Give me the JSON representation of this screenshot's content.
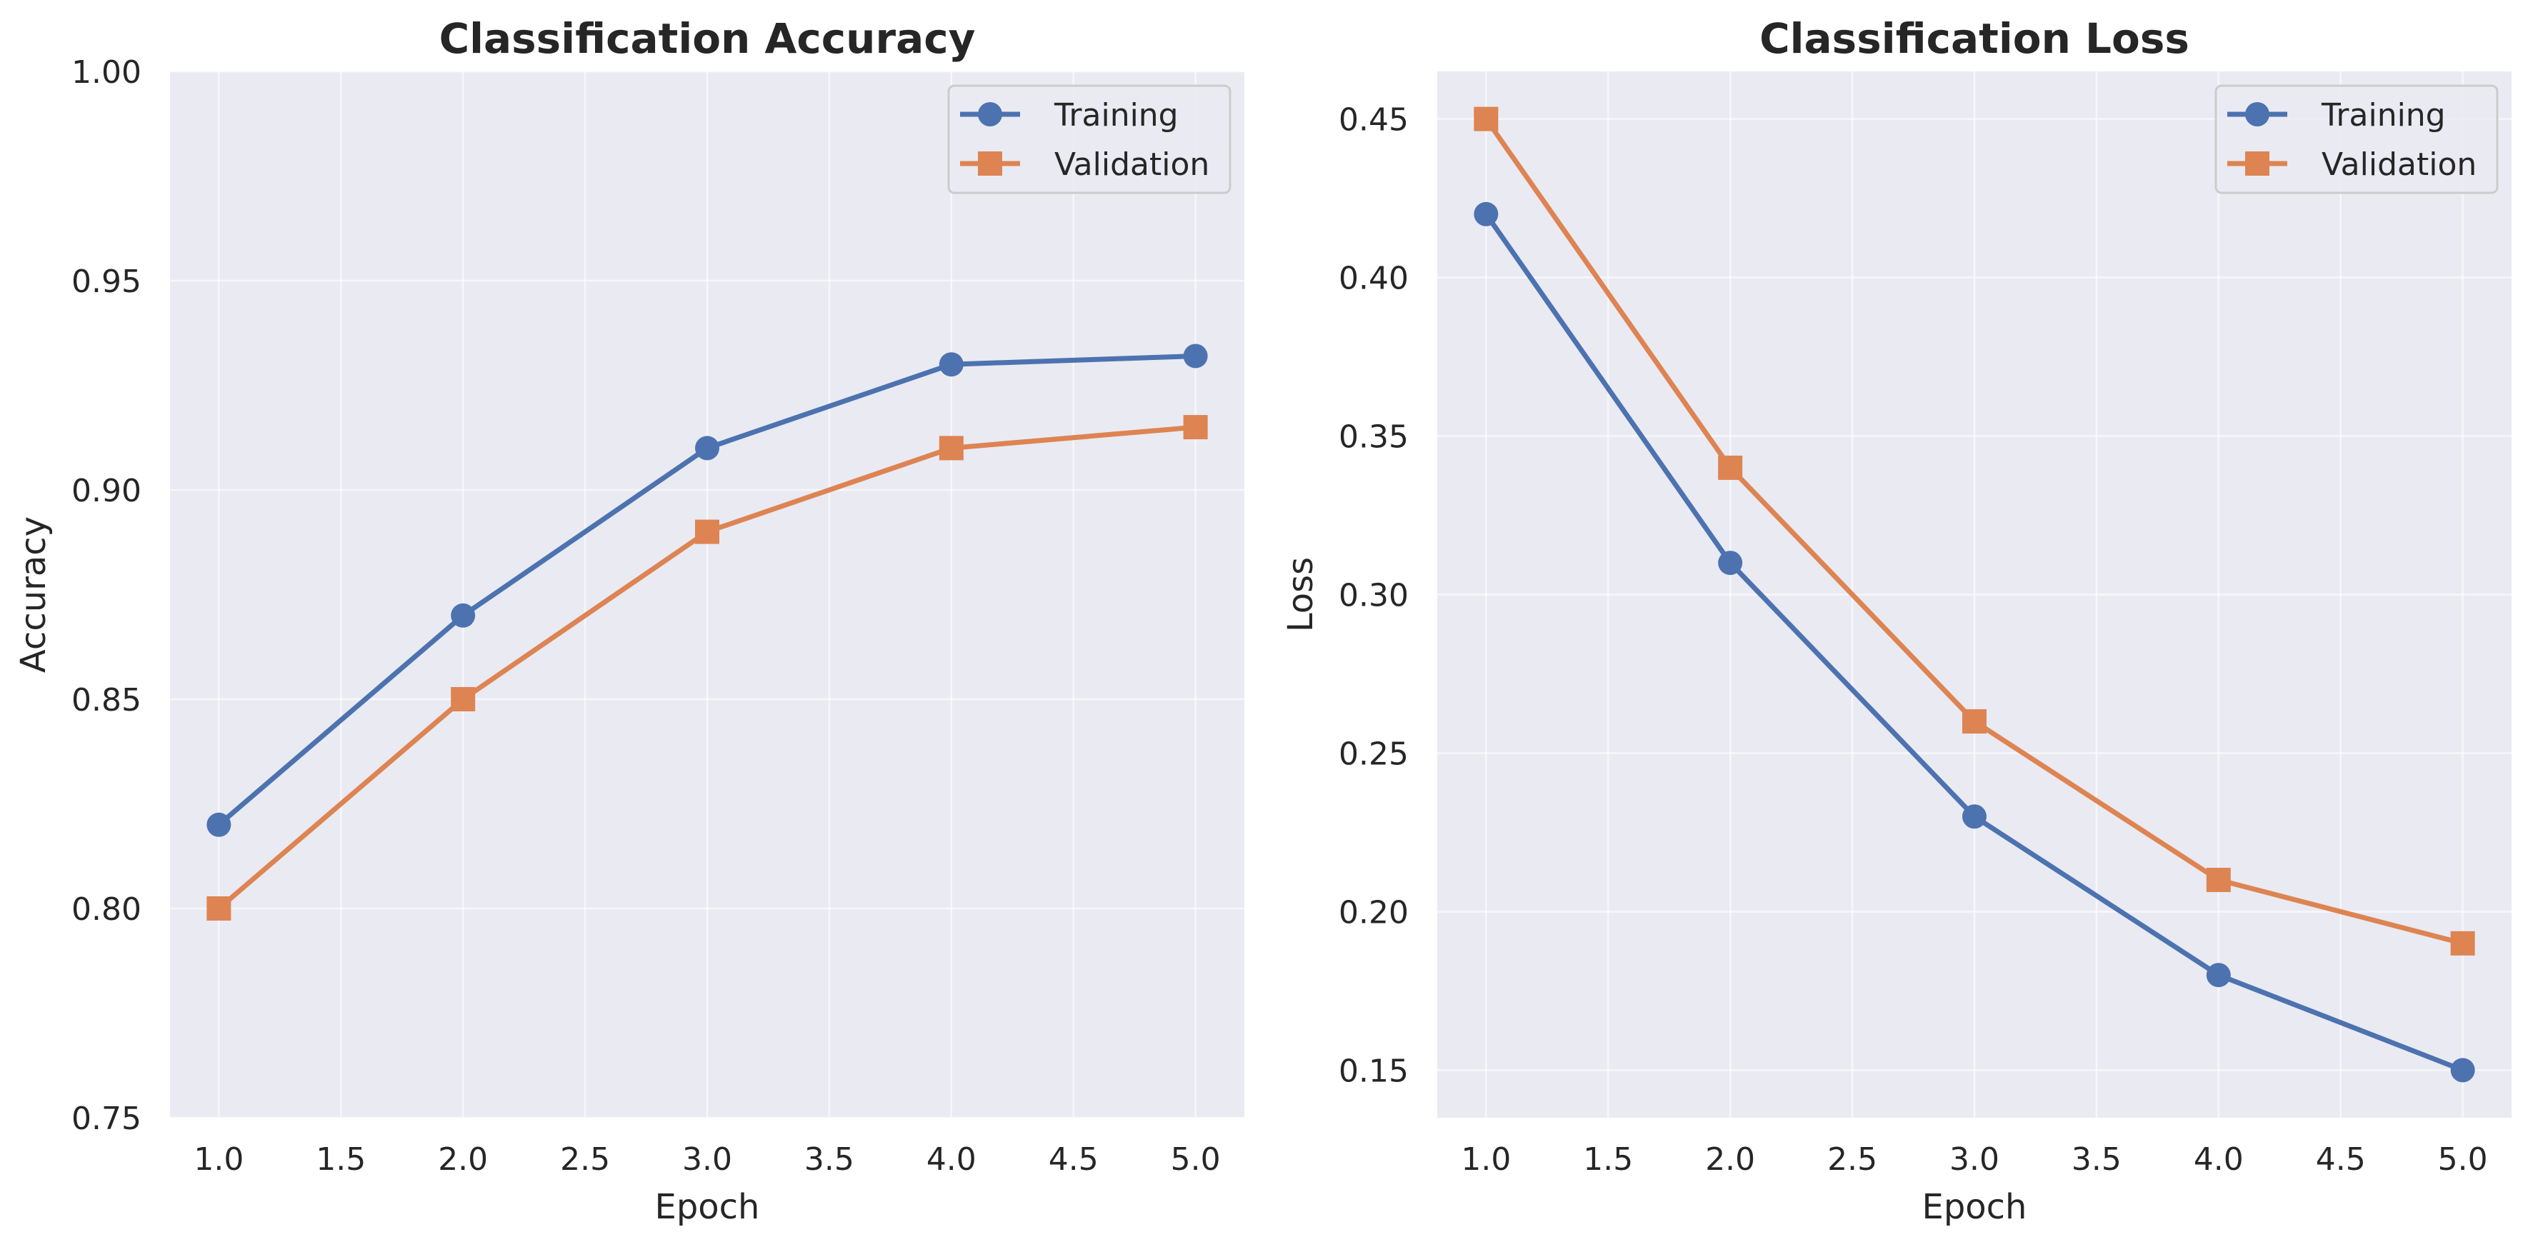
{
  "colors": {
    "training": "#4c72b0",
    "validation": "#dd8452",
    "plot_background": "#eaeaf2",
    "grid": "#ffffff"
  },
  "chart_data": [
    {
      "type": "line",
      "title": "Classification Accuracy",
      "xlabel": "Epoch",
      "ylabel": "Accuracy",
      "xlim": [
        0.8,
        5.2
      ],
      "ylim": [
        0.75,
        1.0
      ],
      "xticks": [
        "1.0",
        "1.5",
        "2.0",
        "2.5",
        "3.0",
        "3.5",
        "4.0",
        "4.5",
        "5.0"
      ],
      "yticks": [
        "0.75",
        "0.80",
        "0.85",
        "0.90",
        "0.95",
        "1.00"
      ],
      "grid": true,
      "legend_position": "top-right",
      "x": [
        1,
        2,
        3,
        4,
        5
      ],
      "series": [
        {
          "name": "Training",
          "marker": "circle",
          "values": [
            0.82,
            0.87,
            0.91,
            0.93,
            0.932
          ]
        },
        {
          "name": "Validation",
          "marker": "square",
          "values": [
            0.8,
            0.85,
            0.89,
            0.91,
            0.915
          ]
        }
      ]
    },
    {
      "type": "line",
      "title": "Classification Loss",
      "xlabel": "Epoch",
      "ylabel": "Loss",
      "xlim": [
        0.8,
        5.2
      ],
      "ylim": [
        0.135,
        0.465
      ],
      "xticks": [
        "1.0",
        "1.5",
        "2.0",
        "2.5",
        "3.0",
        "3.5",
        "4.0",
        "4.5",
        "5.0"
      ],
      "yticks": [
        "0.15",
        "0.20",
        "0.25",
        "0.30",
        "0.35",
        "0.40",
        "0.45"
      ],
      "grid": true,
      "legend_position": "top-right",
      "x": [
        1,
        2,
        3,
        4,
        5
      ],
      "series": [
        {
          "name": "Training",
          "marker": "circle",
          "values": [
            0.42,
            0.31,
            0.23,
            0.18,
            0.15
          ]
        },
        {
          "name": "Validation",
          "marker": "square",
          "values": [
            0.45,
            0.34,
            0.26,
            0.21,
            0.19
          ]
        }
      ]
    }
  ]
}
